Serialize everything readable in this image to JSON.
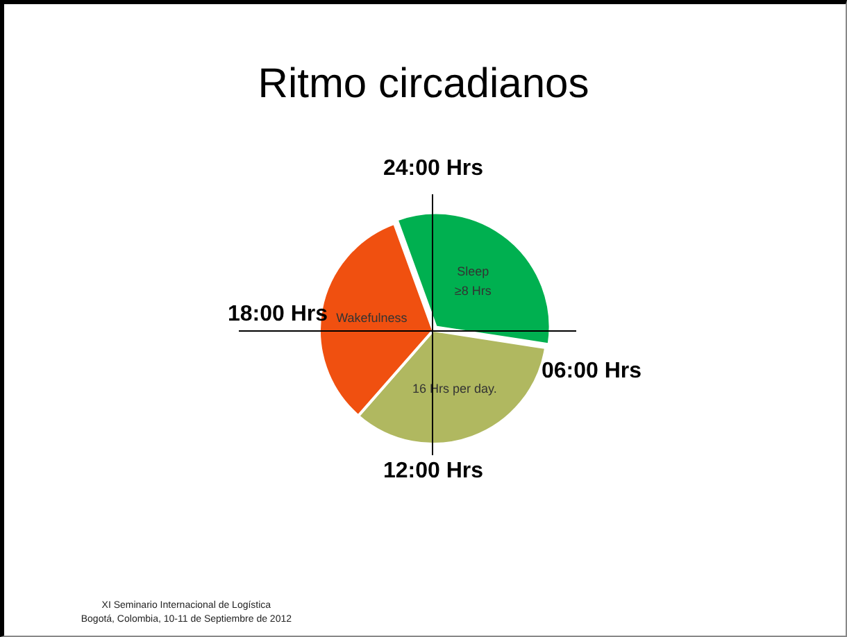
{
  "chart_data": {
    "type": "pie",
    "title": "Ritmo circadianos",
    "categories": [
      "Sleep ≥8 Hrs",
      "16 Hrs per day.",
      "Wakefulness"
    ],
    "values": [
      33,
      34,
      33
    ],
    "colors": [
      "#00b050",
      "#b0b860",
      "#f05010"
    ],
    "annotations": [
      "24:00 Hrs",
      "18:00 Hrs",
      "06:00 Hrs",
      "12:00 Hrs",
      "XI Seminario Internacional de Logística",
      "Bogotá, Colombia, 10-11 de Septiembre de 2012"
    ]
  }
}
